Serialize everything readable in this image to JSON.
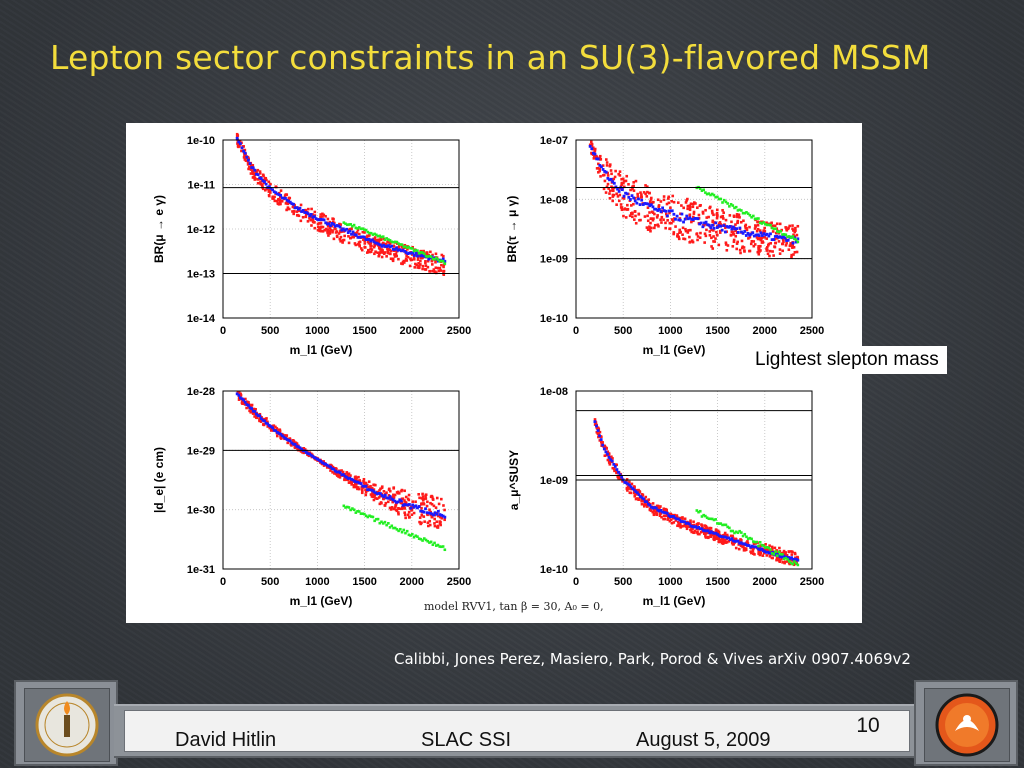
{
  "slide": {
    "title": "Lepton sector constraints in an SU(3)-flavored MSSM",
    "annotation": "Lightest slepton mass",
    "citation": "Calibbi, Jones Perez, Masiero, Park, Porod & Vives arXiv 0907.4069v2",
    "figure_caption": "model RVV1, tan β = 30, A₀ = 0,"
  },
  "footer": {
    "author": "David Hitlin",
    "venue": "SLAC SSI",
    "date": "August 5, 2009",
    "page": "10"
  },
  "colors": {
    "title": "#f3dd3c",
    "points_red": "#ff1a1a",
    "points_blue": "#1a1aff",
    "points_green": "#22ee22",
    "limit_line": "#000000"
  },
  "logos": {
    "left": "caltech-seal-icon",
    "right": "caltech-mascot-icon"
  },
  "chart_data": [
    {
      "type": "scatter",
      "ylabel": "BR(μ → e γ)",
      "xlabel": "m_l1 (GeV)",
      "xticks": [
        "0",
        "500",
        "1000",
        "1500",
        "2000",
        "2500"
      ],
      "yticks": [
        "1e-14",
        "1e-13",
        "1e-12",
        "1e-11",
        "1e-10"
      ],
      "xlim": [
        0,
        2500
      ],
      "ylim_log10": [
        -14,
        -10
      ],
      "log_y": true,
      "limits_log10": [
        -11.07,
        -13.0
      ],
      "band": {
        "x": [
          150,
          300,
          500,
          800,
          1200,
          1600,
          2000,
          2350
        ],
        "center": [
          -9.95,
          -10.6,
          -11.1,
          -11.55,
          -11.95,
          -12.3,
          -12.55,
          -12.72
        ],
        "upper": [
          -9.85,
          -10.45,
          -10.95,
          -11.4,
          -11.8,
          -12.15,
          -12.4,
          -12.6
        ],
        "lower": [
          -10.1,
          -10.8,
          -11.3,
          -11.8,
          -12.25,
          -12.6,
          -12.85,
          -13.05
        ]
      },
      "green": {
        "x": [
          1280,
          2350
        ],
        "y": [
          -11.85,
          -12.75
        ]
      }
    },
    {
      "type": "scatter",
      "ylabel": "BR(τ → μ γ)",
      "xlabel": "m_l1 (GeV)",
      "xticks": [
        "0",
        "500",
        "1000",
        "1500",
        "2000",
        "2500"
      ],
      "yticks": [
        "1e-10",
        "1e-09",
        "1e-08",
        "1e-07"
      ],
      "xlim": [
        0,
        2500
      ],
      "ylim_log10": [
        -10,
        -7
      ],
      "log_y": true,
      "limits_log10": [
        -7.8,
        -9.0
      ],
      "band": {
        "x": [
          150,
          300,
          500,
          800,
          1200,
          1600,
          2000,
          2350
        ],
        "center": [
          -7.1,
          -7.55,
          -7.9,
          -8.15,
          -8.35,
          -8.5,
          -8.62,
          -8.7
        ],
        "upper": [
          -7.0,
          -7.3,
          -7.55,
          -7.8,
          -8.0,
          -8.2,
          -8.35,
          -8.45
        ],
        "lower": [
          -7.2,
          -7.85,
          -8.3,
          -8.55,
          -8.75,
          -8.88,
          -8.95,
          -9.0
        ]
      },
      "green": {
        "x": [
          1280,
          2350
        ],
        "y": [
          -7.8,
          -8.7
        ]
      }
    },
    {
      "type": "scatter",
      "ylabel": "|d_e| (e cm)",
      "xlabel": "m_l1 (GeV)",
      "xticks": [
        "0",
        "500",
        "1000",
        "1500",
        "2000",
        "2500"
      ],
      "yticks": [
        "1e-31",
        "1e-30",
        "1e-29",
        "1e-28"
      ],
      "xlim": [
        0,
        2500
      ],
      "ylim_log10": [
        -31,
        -28
      ],
      "log_y": true,
      "limits_log10": [
        -29.0
      ],
      "band": {
        "x": [
          150,
          300,
          500,
          800,
          1000,
          1200,
          1600,
          2000,
          2350
        ],
        "center": [
          -28.05,
          -28.3,
          -28.6,
          -28.95,
          -29.15,
          -29.35,
          -29.7,
          -29.95,
          -30.1
        ],
        "upper": [
          -27.98,
          -28.22,
          -28.52,
          -28.9,
          -29.13,
          -29.3,
          -29.55,
          -29.7,
          -29.8
        ],
        "lower": [
          -28.12,
          -28.38,
          -28.68,
          -29.0,
          -29.17,
          -29.42,
          -29.85,
          -30.2,
          -30.35
        ]
      },
      "green": {
        "x": [
          1280,
          2350
        ],
        "y": [
          -29.95,
          -30.65
        ]
      }
    },
    {
      "type": "scatter",
      "ylabel": "a_μ^SUSY",
      "xlabel": "m_l1 (GeV)",
      "xticks": [
        "0",
        "500",
        "1000",
        "1500",
        "2000",
        "2500"
      ],
      "yticks": [
        "1e-10",
        "1e-09",
        "1e-08"
      ],
      "xlim": [
        0,
        2500
      ],
      "ylim_log10": [
        -10,
        -8
      ],
      "log_y": true,
      "limits_log10": [
        -8.22,
        -8.95,
        -9.0
      ],
      "band": {
        "x": [
          200,
          300,
          500,
          800,
          1200,
          1600,
          2000,
          2350
        ],
        "center": [
          -8.35,
          -8.65,
          -9.0,
          -9.3,
          -9.5,
          -9.65,
          -9.8,
          -9.9
        ],
        "upper": [
          -8.3,
          -8.6,
          -8.95,
          -9.25,
          -9.45,
          -9.6,
          -9.72,
          -9.82
        ],
        "lower": [
          -8.4,
          -8.72,
          -9.08,
          -9.38,
          -9.58,
          -9.73,
          -9.88,
          -9.97
        ]
      },
      "green": {
        "x": [
          1280,
          2350
        ],
        "y": [
          -9.35,
          -9.95
        ]
      }
    }
  ]
}
